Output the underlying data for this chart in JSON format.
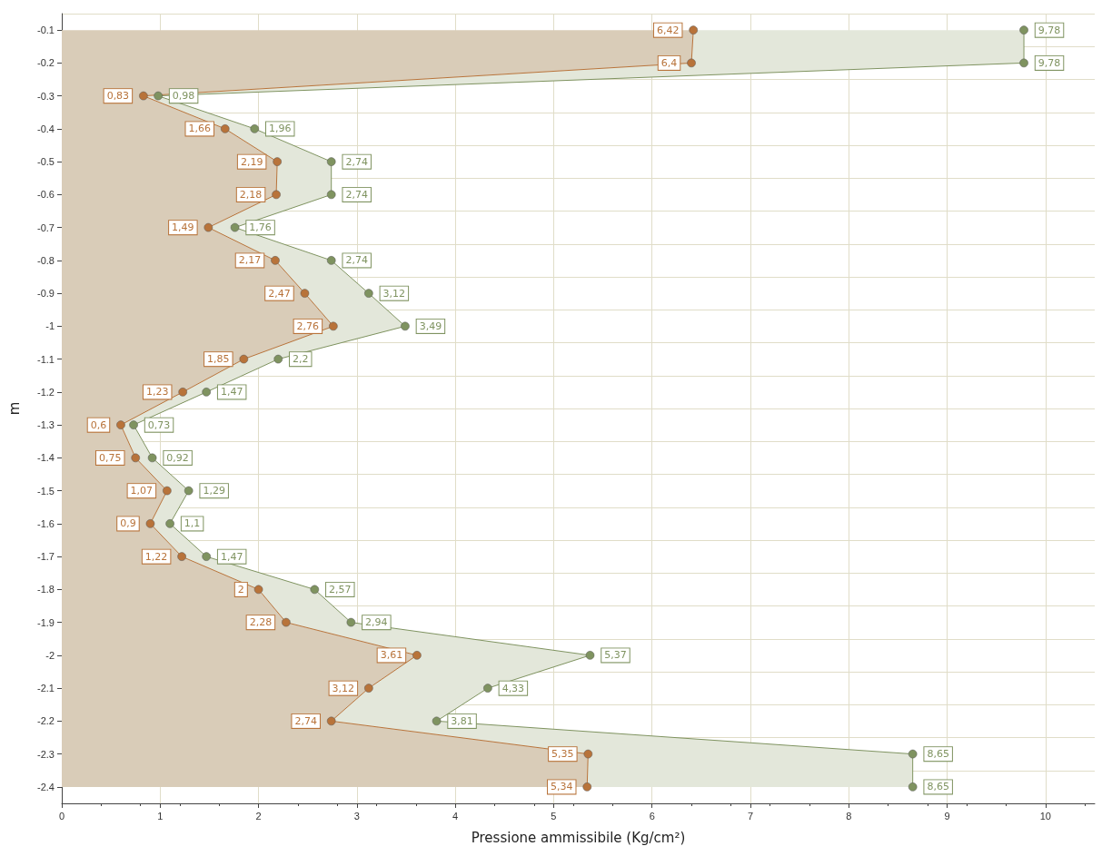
{
  "chart_data": {
    "type": "area",
    "orientation": "horizontal",
    "xlabel": "Pressione ammissibile (Kg/cm²)",
    "ylabel": "m",
    "categories": [
      "-0.1",
      "-0.2",
      "-0.3",
      "-0.4",
      "-0.5",
      "-0.6",
      "-0.7",
      "-0.8",
      "-0.9",
      "-1",
      "-1.1",
      "-1.2",
      "-1.3",
      "-1.4",
      "-1.5",
      "-1.6",
      "-1.7",
      "-1.8",
      "-1.9",
      "-2",
      "-2.1",
      "-2.2",
      "-2.3",
      "-2.4"
    ],
    "series": [
      {
        "color": "#b8733a",
        "values": [
          6.42,
          6.4,
          0.83,
          1.66,
          2.19,
          2.18,
          1.49,
          2.17,
          2.47,
          2.76,
          1.85,
          1.23,
          0.6,
          0.75,
          1.07,
          0.9,
          1.22,
          2,
          2.28,
          3.61,
          3.12,
          2.74,
          5.35,
          5.34
        ],
        "value_labels": [
          "6,42",
          "6,4",
          "0,83",
          "1,66",
          "2,19",
          "2,18",
          "1,49",
          "2,17",
          "2,47",
          "2,76",
          "1,85",
          "1,23",
          "0,6",
          "0,75",
          "1,07",
          "0,9",
          "1,22",
          "2",
          "2,28",
          "3,61",
          "3,12",
          "2,74",
          "5,35",
          "5,34"
        ]
      },
      {
        "color": "#7f9360",
        "values": [
          9.78,
          9.78,
          0.98,
          1.96,
          2.74,
          2.74,
          1.76,
          2.74,
          3.12,
          3.49,
          2.2,
          1.47,
          0.73,
          0.92,
          1.29,
          1.1,
          1.47,
          2.57,
          2.94,
          5.37,
          4.33,
          3.81,
          8.65,
          8.65
        ],
        "value_labels": [
          "9,78",
          "9,78",
          "0,98",
          "1,96",
          "2,74",
          "2,74",
          "1,76",
          "2,74",
          "3,12",
          "3,49",
          "2,2",
          "1,47",
          "0,73",
          "0,92",
          "1,29",
          "1,1",
          "1,47",
          "2,57",
          "2,94",
          "5,37",
          "4,33",
          "3,81",
          "8,65",
          "8,65"
        ]
      }
    ],
    "xlim": [
      0,
      10.5
    ],
    "xticks": [
      0,
      1,
      2,
      3,
      4,
      5,
      6,
      7,
      8,
      9,
      10
    ],
    "grid": true,
    "marker": "circle"
  }
}
